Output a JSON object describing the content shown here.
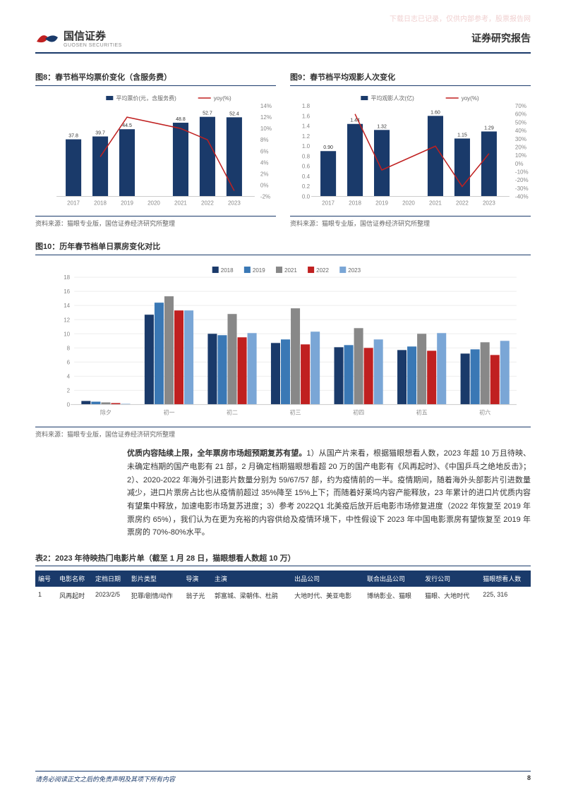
{
  "watermark": "下载日志已记录，仅供内部参考，股票报告网",
  "header": {
    "logo_cn": "国信证券",
    "logo_en": "GUOSEN SECURITIES",
    "report_title": "证券研究报告"
  },
  "chart8": {
    "title": "图8：春节档平均票价变化（含服务费）",
    "type": "bar+line",
    "legend": {
      "bar": "平均票价(元，含服务费)",
      "line": "yoy(%)"
    },
    "categories": [
      "2017",
      "2018",
      "2019",
      "2020",
      "2021",
      "2022",
      "2023"
    ],
    "bar_values": [
      37.8,
      39.7,
      44.5,
      null,
      48.8,
      52.7,
      52.4
    ],
    "bar_labels": [
      "37.8",
      "39.7",
      "44.5",
      "",
      "48.8",
      "52.7",
      "52.4"
    ],
    "line_values": [
      null,
      5,
      12,
      null,
      10,
      8,
      -1
    ],
    "y_left": {
      "min": 0,
      "max": 60
    },
    "y_right": {
      "min": -2,
      "max": 14,
      "ticks": [
        "-2%",
        "0%",
        "2%",
        "4%",
        "6%",
        "8%",
        "10%",
        "12%",
        "14%"
      ]
    },
    "bar_color": "#1a3a6a",
    "line_color": "#c02020",
    "source": "资料来源：猫眼专业版，国信证券经济研究所整理"
  },
  "chart9": {
    "title": "图9：春节档平均观影人次变化",
    "type": "bar+line",
    "legend": {
      "bar": "平均观影人次(亿)",
      "line": "yoy(%)"
    },
    "categories": [
      "2017",
      "2018",
      "2019",
      "2020",
      "2021",
      "2022",
      "2023"
    ],
    "bar_values": [
      0.9,
      1.44,
      1.32,
      null,
      1.6,
      1.15,
      1.29
    ],
    "bar_labels": [
      "0.90",
      "1.44",
      "1.32",
      "",
      "1.60",
      "1.15",
      "1.29"
    ],
    "line_values": [
      null,
      60,
      -8,
      null,
      21,
      -28,
      12
    ],
    "y_left": {
      "min": 0,
      "max": 1.8
    },
    "y_right": {
      "min": -40,
      "max": 70,
      "ticks": [
        "-40%",
        "-30%",
        "-20%",
        "-10%",
        "0%",
        "10%",
        "20%",
        "30%",
        "40%",
        "50%",
        "60%",
        "70%"
      ]
    },
    "bar_color": "#1a3a6a",
    "line_color": "#c02020",
    "source": "资料来源：猫眼专业版，国信证券经济研究所整理"
  },
  "chart10": {
    "title": "图10：历年春节档单日票房变化对比",
    "type": "grouped-bar",
    "series": [
      "2018",
      "2019",
      "2021",
      "2022",
      "2023"
    ],
    "series_colors": [
      "#1a3a6a",
      "#3a78b5",
      "#888888",
      "#c02020",
      "#7aa6d6"
    ],
    "categories": [
      "除夕",
      "初一",
      "初二",
      "初三",
      "初四",
      "初五",
      "初六"
    ],
    "values": [
      [
        0.5,
        0.4,
        0.3,
        0.2,
        0.1
      ],
      [
        12.7,
        14.4,
        15.3,
        13.3,
        13.3
      ],
      [
        10.0,
        9.8,
        12.8,
        9.5,
        10.1
      ],
      [
        8.7,
        9.2,
        13.6,
        8.5,
        10.3
      ],
      [
        8.1,
        8.4,
        10.8,
        8.0,
        9.2
      ],
      [
        7.7,
        8.2,
        10.0,
        7.6,
        10.1
      ],
      [
        7.2,
        7.8,
        8.8,
        7.0,
        9.0
      ]
    ],
    "y": {
      "min": 0,
      "max": 18,
      "ticks": [
        0,
        2,
        4,
        6,
        8,
        10,
        12,
        14,
        16,
        18
      ]
    },
    "source": "资料来源：猫眼专业版，国信证券经济研究所整理"
  },
  "body": {
    "bold_lead": "优质内容陆续上限，全年票房市场超预期复苏有望。",
    "text": "1）从国产片来看，根据猫眼想看人数，2023 年超 10 万且待映、未确定档期的国产电影有 21 部，2 月确定档期猫眼想看超 20 万的国产电影有《风再起时》、《中国乒乓之绝地反击》；2）、2020-2022 年海外引进影片数量分别为 59/67/57 部，约为疫情前的一半。疫情期间，随着海外头部影片引进数量减少，进口片票房占比也从疫情前超过 35%降至 15%上下；而随着好莱坞内容产能释放，23 年累计的进口片优质内容有望集中释放，加速电影市场复苏进度；3）参考 2022Q1 北美疫后放开后电影市场修复进度（2022 年恢复至 2019 年票房约 65%），我们认为在更为充裕的内容供给及疫情环境下，中性假设下 2023 年中国电影票房有望恢复至 2019 年票房的 70%-80%水平。"
  },
  "table2": {
    "title": "表2：2023 年待映热门电影片单（截至 1 月 28 日，猫眼想看人数超 10 万）",
    "columns": [
      "编号",
      "电影名称",
      "定档日期",
      "影片类型",
      "导演",
      "主演",
      "出品公司",
      "联合出品公司",
      "发行公司",
      "猫眼想看人数"
    ],
    "rows": [
      [
        "1",
        "风再起时",
        "2023/2/5",
        "犯罪/剧情/动作",
        "翁子光",
        "郭富城、梁朝伟、杜鹃",
        "大地时代、美亚电影",
        "博纳影业、猫眼",
        "猫眼、大地时代",
        "225, 316"
      ]
    ]
  },
  "footer": {
    "disclaimer": "请务必阅读正文之后的免责声明及其项下所有内容",
    "page": "8"
  }
}
